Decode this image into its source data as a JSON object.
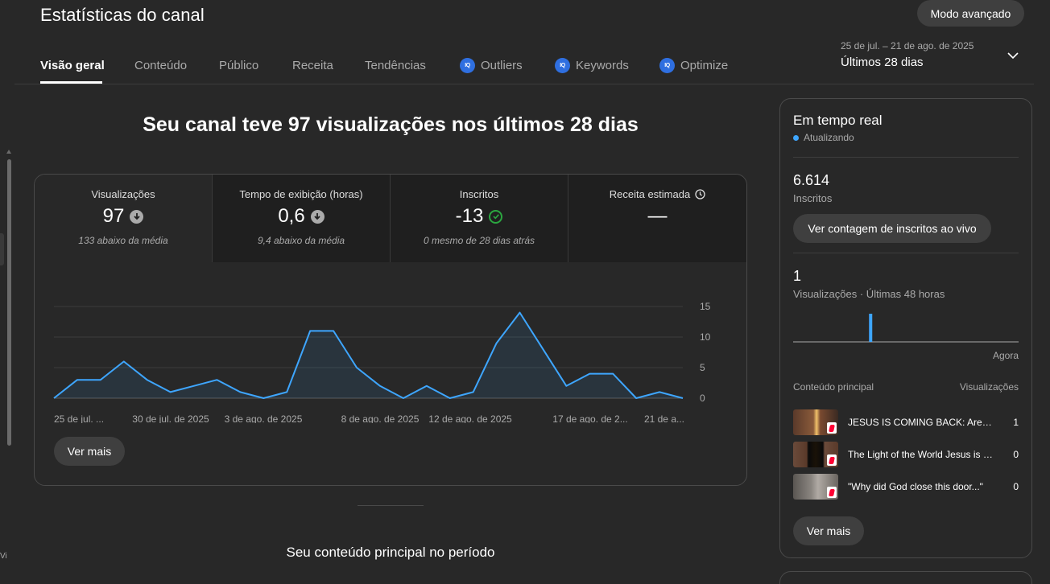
{
  "page_title": "Estatísticas do canal",
  "advanced_mode_label": "Modo avançado",
  "tabs": [
    {
      "label": "Visão geral",
      "active": true,
      "icon": null
    },
    {
      "label": "Conteúdo",
      "active": false,
      "icon": null
    },
    {
      "label": "Público",
      "active": false,
      "icon": null
    },
    {
      "label": "Receita",
      "active": false,
      "icon": null
    },
    {
      "label": "Tendências",
      "active": false,
      "icon": null
    },
    {
      "label": "Outliers",
      "active": false,
      "icon": "vidiq-icon"
    },
    {
      "label": "Keywords",
      "active": false,
      "icon": "vidiq-icon"
    },
    {
      "label": "Optimize",
      "active": false,
      "icon": "vidiq-icon"
    }
  ],
  "icon_badge_text": "IQ",
  "date_range": {
    "dates": "25 de jul. – 21 de ago. de 2025",
    "label": "Últimos 28 dias"
  },
  "headline": "Seu canal teve 97 visualizações nos últimos 28 dias",
  "metrics": [
    {
      "label": "Visualizações",
      "value": "97",
      "note": "133 abaixo da média",
      "status_icon": "arrow-down-icon"
    },
    {
      "label": "Tempo de exibição (horas)",
      "value": "0,6",
      "note": "9,4 abaixo da média",
      "status_icon": "arrow-down-icon"
    },
    {
      "label": "Inscritos",
      "value": "-13",
      "note": "0 mesmo de 28 dias atrás",
      "status_icon": "check-circle-icon"
    },
    {
      "label": "Receita estimada",
      "value": "—",
      "note": "",
      "status_icon": "clock-icon"
    }
  ],
  "chart_data": {
    "type": "area",
    "title": "",
    "xlabel": "",
    "ylabel": "",
    "ylim": [
      0,
      15
    ],
    "yticks": [
      "15",
      "10",
      "5",
      "0"
    ],
    "xtick_labels": [
      "25 de jul. ...",
      "30 de jul. de 2025",
      "3 de ago. de 2025",
      "8 de ago. de 2025",
      "12 de ago. de 2025",
      "17 de ago. de 2...",
      "21 de a..."
    ],
    "x": [
      "25/07",
      "26/07",
      "27/07",
      "28/07",
      "29/07",
      "30/07",
      "31/07",
      "01/08",
      "02/08",
      "03/08",
      "04/08",
      "05/08",
      "06/08",
      "07/08",
      "08/08",
      "09/08",
      "10/08",
      "11/08",
      "12/08",
      "13/08",
      "14/08",
      "15/08",
      "16/08",
      "17/08",
      "18/08",
      "19/08",
      "20/08",
      "21/08"
    ],
    "series": [
      {
        "values": [
          0,
          3,
          3,
          6,
          3,
          1,
          2,
          3,
          1,
          0,
          1,
          11,
          11,
          5,
          2,
          0,
          2,
          0,
          1,
          9,
          14,
          8,
          2,
          4,
          4,
          0,
          1,
          0
        ]
      }
    ],
    "grid": true,
    "line_color": "#3ea6ff"
  },
  "see_more_label": "Ver mais",
  "top_content_section_title": "Seu conteúdo principal no período",
  "realtime": {
    "title": "Em tempo real",
    "status": "Atualizando",
    "subscribers_value": "6.614",
    "subscribers_label": "Inscritos",
    "live_count_button": "Ver contagem de inscritos ao vivo",
    "views_value": "1",
    "views_label": "Visualizações · Últimas 48 horas",
    "mini_chart_values": [
      0,
      0,
      0,
      0,
      0,
      0,
      0,
      0,
      0,
      0,
      0,
      0,
      0,
      0,
      0,
      0,
      1,
      0,
      0,
      0,
      0,
      0,
      0,
      0,
      0,
      0,
      0,
      0,
      0,
      0,
      0,
      0,
      0,
      0,
      0,
      0,
      0,
      0,
      0,
      0,
      0,
      0,
      0,
      0,
      0,
      0,
      0,
      0
    ],
    "now_label": "Agora",
    "table_header_left": "Conteúdo principal",
    "table_header_right": "Visualizações",
    "items": [
      {
        "title": "JESUS IS COMING BACK: Are You Ready?",
        "views": "1"
      },
      {
        "title": "The Light of the World Jesus is Coming",
        "views": "0"
      },
      {
        "title": "\"Why did God close this door...\"",
        "views": "0"
      }
    ],
    "see_more_label": "Ver mais"
  },
  "edge_text": "Vi"
}
